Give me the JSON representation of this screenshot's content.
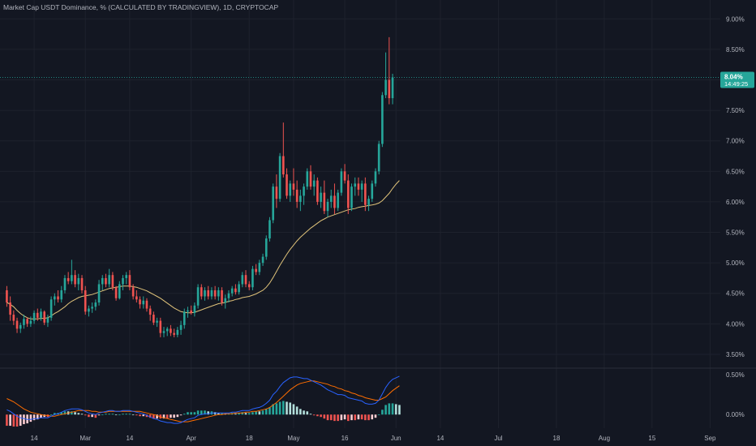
{
  "header": {
    "title": "Market Cap USDT Dominance, % (CALCULATED BY TRADINGVIEW), 1D, CRYPTOCAP"
  },
  "price_badge": {
    "value": "8.04%",
    "countdown": "14:49:25",
    "color": "#26a69a"
  },
  "colors": {
    "background": "#131722",
    "up": "#26a69a",
    "down": "#ef5350",
    "ma": "#e0c37a",
    "macd": "#2962ff",
    "signal": "#ff6d00",
    "hist_up_strong": "#26a69a",
    "hist_up_weak": "#b2dfdb",
    "hist_down_strong": "#ef5350",
    "hist_down_weak": "#ffcdd2"
  },
  "chart_data": [
    {
      "type": "candlestick",
      "y_unit": "%",
      "ylim": [
        3.3,
        9.15
      ],
      "y_ticks": [
        "9.00%",
        "8.50%",
        "8.00%",
        "7.50%",
        "7.00%",
        "6.50%",
        "6.00%",
        "5.50%",
        "5.00%",
        "4.50%",
        "4.00%",
        "3.50%"
      ],
      "y_tick_values": [
        9.0,
        8.5,
        8.0,
        7.5,
        7.0,
        6.5,
        6.0,
        5.5,
        5.0,
        4.5,
        4.0,
        3.5
      ],
      "last_value": 8.04,
      "x_ticks": [
        {
          "label": "14",
          "index": 8
        },
        {
          "label": "Mar",
          "index": 23
        },
        {
          "label": "14",
          "index": 36
        },
        {
          "label": "Apr",
          "index": 54
        },
        {
          "label": "18",
          "index": 71
        },
        {
          "label": "May",
          "index": 84
        },
        {
          "label": "16",
          "index": 99
        },
        {
          "label": "Jun",
          "index": 114
        },
        {
          "label": "14",
          "index": 127
        },
        {
          "label": "Jul",
          "index": 144
        },
        {
          "label": "18",
          "index": 161
        },
        {
          "label": "Aug",
          "index": 175
        },
        {
          "label": "15",
          "index": 189
        },
        {
          "label": "Sep",
          "index": 206
        }
      ],
      "candles": [
        [
          4.55,
          4.62,
          4.28,
          4.35
        ],
        [
          4.35,
          4.45,
          4.05,
          4.15
        ],
        [
          4.15,
          4.22,
          3.98,
          4.05
        ],
        [
          4.05,
          4.1,
          3.85,
          3.92
        ],
        [
          3.92,
          4.02,
          3.85,
          3.98
        ],
        [
          3.98,
          4.15,
          3.92,
          4.08
        ],
        [
          4.08,
          4.1,
          3.95,
          4.0
        ],
        [
          4.0,
          4.12,
          3.95,
          4.05
        ],
        [
          4.05,
          4.22,
          4.0,
          4.18
        ],
        [
          4.18,
          4.25,
          4.05,
          4.1
        ],
        [
          4.1,
          4.25,
          4.05,
          4.2
        ],
        [
          4.2,
          4.22,
          3.98,
          4.02
        ],
        [
          4.02,
          4.15,
          3.95,
          4.1
        ],
        [
          4.1,
          4.45,
          4.05,
          4.4
        ],
        [
          4.4,
          4.5,
          4.3,
          4.45
        ],
        [
          4.45,
          4.55,
          4.35,
          4.4
        ],
        [
          4.4,
          4.62,
          4.35,
          4.55
        ],
        [
          4.55,
          4.8,
          4.5,
          4.75
        ],
        [
          4.75,
          4.85,
          4.65,
          4.7
        ],
        [
          4.7,
          5.05,
          4.65,
          4.8
        ],
        [
          4.8,
          4.88,
          4.6,
          4.65
        ],
        [
          4.65,
          4.82,
          4.55,
          4.75
        ],
        [
          4.75,
          4.8,
          4.5,
          4.55
        ],
        [
          4.55,
          4.62,
          4.15,
          4.2
        ],
        [
          4.2,
          4.3,
          4.12,
          4.25
        ],
        [
          4.25,
          4.35,
          4.18,
          4.28
        ],
        [
          4.28,
          4.4,
          4.22,
          4.35
        ],
        [
          4.35,
          4.72,
          4.3,
          4.65
        ],
        [
          4.65,
          4.8,
          4.55,
          4.75
        ],
        [
          4.75,
          4.82,
          4.6,
          4.65
        ],
        [
          4.65,
          4.9,
          4.6,
          4.8
        ],
        [
          4.8,
          4.85,
          4.55,
          4.6
        ],
        [
          4.6,
          4.62,
          4.38,
          4.42
        ],
        [
          4.42,
          4.7,
          4.4,
          4.65
        ],
        [
          4.65,
          4.8,
          4.55,
          4.75
        ],
        [
          4.75,
          4.85,
          4.65,
          4.8
        ],
        [
          4.8,
          4.88,
          4.55,
          4.6
        ],
        [
          4.6,
          4.65,
          4.4,
          4.45
        ],
        [
          4.45,
          4.55,
          4.35,
          4.4
        ],
        [
          4.4,
          4.45,
          4.25,
          4.32
        ],
        [
          4.32,
          4.45,
          4.25,
          4.38
        ],
        [
          4.38,
          4.42,
          4.2,
          4.25
        ],
        [
          4.25,
          4.3,
          4.05,
          4.15
        ],
        [
          4.15,
          4.2,
          3.98,
          4.02
        ],
        [
          4.02,
          4.1,
          3.95,
          4.05
        ],
        [
          4.05,
          4.1,
          3.78,
          3.85
        ],
        [
          3.85,
          3.95,
          3.78,
          3.88
        ],
        [
          3.88,
          3.95,
          3.8,
          3.92
        ],
        [
          3.92,
          3.98,
          3.8,
          3.85
        ],
        [
          3.85,
          3.92,
          3.78,
          3.82
        ],
        [
          3.82,
          3.95,
          3.78,
          3.9
        ],
        [
          3.9,
          4.05,
          3.82,
          3.98
        ],
        [
          3.98,
          4.25,
          3.92,
          4.2
        ],
        [
          4.2,
          4.28,
          4.1,
          4.22
        ],
        [
          4.22,
          4.3,
          4.15,
          4.18
        ],
        [
          4.18,
          4.35,
          4.12,
          4.3
        ],
        [
          4.3,
          4.65,
          4.25,
          4.6
        ],
        [
          4.6,
          4.65,
          4.4,
          4.45
        ],
        [
          4.45,
          4.6,
          4.38,
          4.55
        ],
        [
          4.55,
          4.62,
          4.4,
          4.45
        ],
        [
          4.45,
          4.6,
          4.4,
          4.55
        ],
        [
          4.55,
          4.62,
          4.4,
          4.45
        ],
        [
          4.45,
          4.6,
          4.38,
          4.55
        ],
        [
          4.55,
          4.6,
          4.3,
          4.35
        ],
        [
          4.35,
          4.48,
          4.25,
          4.42
        ],
        [
          4.42,
          4.55,
          4.35,
          4.5
        ],
        [
          4.5,
          4.62,
          4.45,
          4.58
        ],
        [
          4.58,
          4.65,
          4.48,
          4.52
        ],
        [
          4.52,
          4.7,
          4.48,
          4.65
        ],
        [
          4.65,
          4.85,
          4.6,
          4.8
        ],
        [
          4.8,
          4.88,
          4.6,
          4.65
        ],
        [
          4.65,
          4.7,
          4.55,
          4.6
        ],
        [
          4.6,
          4.95,
          4.55,
          4.9
        ],
        [
          4.9,
          4.98,
          4.8,
          4.85
        ],
        [
          4.85,
          5.05,
          4.8,
          5.0
        ],
        [
          5.0,
          5.15,
          4.95,
          5.1
        ],
        [
          5.1,
          5.45,
          5.05,
          5.4
        ],
        [
          5.4,
          5.75,
          5.35,
          5.7
        ],
        [
          5.7,
          6.3,
          5.65,
          6.25
        ],
        [
          6.25,
          6.45,
          5.9,
          6.05
        ],
        [
          6.05,
          6.8,
          6.0,
          6.75
        ],
        [
          6.75,
          7.3,
          6.4,
          6.45
        ],
        [
          6.45,
          6.55,
          6.05,
          6.1
        ],
        [
          6.1,
          6.35,
          6.0,
          6.3
        ],
        [
          6.3,
          6.55,
          6.1,
          6.2
        ],
        [
          6.2,
          6.35,
          5.9,
          6.0
        ],
        [
          6.0,
          6.2,
          5.85,
          6.1
        ],
        [
          6.1,
          6.3,
          5.95,
          6.25
        ],
        [
          6.25,
          6.55,
          6.2,
          6.5
        ],
        [
          6.5,
          6.6,
          6.2,
          6.25
        ],
        [
          6.25,
          6.45,
          6.1,
          6.35
        ],
        [
          6.35,
          6.4,
          5.95,
          6.0
        ],
        [
          6.0,
          6.25,
          5.9,
          6.15
        ],
        [
          6.15,
          6.35,
          5.8,
          5.85
        ],
        [
          5.85,
          6.05,
          5.75,
          6.0
        ],
        [
          6.0,
          6.2,
          5.9,
          6.1
        ],
        [
          6.1,
          6.3,
          5.8,
          5.9
        ],
        [
          5.9,
          6.2,
          5.85,
          6.15
        ],
        [
          6.15,
          6.55,
          6.1,
          6.5
        ],
        [
          6.5,
          6.62,
          6.3,
          6.35
        ],
        [
          6.35,
          6.45,
          5.8,
          5.9
        ],
        [
          5.9,
          6.3,
          5.85,
          6.25
        ],
        [
          6.25,
          6.4,
          6.1,
          6.3
        ],
        [
          6.3,
          6.4,
          6.1,
          6.2
        ],
        [
          6.2,
          6.35,
          6.0,
          6.3
        ],
        [
          6.3,
          6.4,
          5.85,
          5.95
        ],
        [
          5.95,
          6.1,
          5.85,
          6.05
        ],
        [
          6.05,
          6.35,
          6.0,
          6.3
        ],
        [
          6.3,
          6.55,
          6.25,
          6.5
        ],
        [
          6.5,
          7.0,
          6.45,
          6.95
        ],
        [
          6.95,
          7.8,
          6.9,
          7.75
        ],
        [
          7.75,
          8.45,
          7.7,
          8.0
        ],
        [
          8.0,
          8.7,
          7.6,
          7.7
        ],
        [
          7.7,
          8.1,
          7.6,
          8.04
        ]
      ],
      "ma": [
        4.35,
        4.32,
        4.28,
        4.22,
        4.17,
        4.13,
        4.1,
        4.08,
        4.08,
        4.08,
        4.09,
        4.09,
        4.1,
        4.13,
        4.17,
        4.2,
        4.24,
        4.28,
        4.33,
        4.37,
        4.4,
        4.43,
        4.45,
        4.46,
        4.47,
        4.48,
        4.5,
        4.52,
        4.54,
        4.56,
        4.58,
        4.59,
        4.6,
        4.61,
        4.62,
        4.62,
        4.62,
        4.61,
        4.6,
        4.58,
        4.56,
        4.54,
        4.51,
        4.48,
        4.45,
        4.42,
        4.38,
        4.34,
        4.3,
        4.26,
        4.23,
        4.2,
        4.19,
        4.18,
        4.18,
        4.19,
        4.21,
        4.23,
        4.25,
        4.27,
        4.29,
        4.31,
        4.33,
        4.34,
        4.35,
        4.37,
        4.38,
        4.4,
        4.41,
        4.43,
        4.44,
        4.45,
        4.47,
        4.49,
        4.52,
        4.55,
        4.6,
        4.67,
        4.76,
        4.86,
        4.96,
        5.05,
        5.14,
        5.22,
        5.29,
        5.36,
        5.42,
        5.47,
        5.52,
        5.57,
        5.61,
        5.65,
        5.69,
        5.72,
        5.75,
        5.77,
        5.79,
        5.81,
        5.83,
        5.85,
        5.87,
        5.88,
        5.89,
        5.91,
        5.92,
        5.93,
        5.94,
        5.95,
        5.96,
        5.98,
        6.02,
        6.08,
        6.14,
        6.22,
        6.29,
        6.35
      ],
      "x_range": [
        -2,
        209
      ]
    },
    {
      "type": "macd",
      "ylim": [
        -0.17,
        0.55
      ],
      "y_ticks": [
        "0.50%",
        "0.00%"
      ],
      "y_tick_values": [
        0.5,
        0.0
      ],
      "macd": [
        0.06,
        0.04,
        0.01,
        -0.02,
        -0.04,
        -0.05,
        -0.06,
        -0.06,
        -0.05,
        -0.05,
        -0.04,
        -0.04,
        -0.04,
        -0.02,
        0.0,
        0.01,
        0.03,
        0.05,
        0.06,
        0.07,
        0.07,
        0.07,
        0.06,
        0.04,
        0.02,
        0.01,
        0.0,
        0.02,
        0.03,
        0.04,
        0.05,
        0.05,
        0.04,
        0.04,
        0.05,
        0.05,
        0.05,
        0.04,
        0.03,
        0.02,
        0.01,
        -0.01,
        -0.03,
        -0.05,
        -0.06,
        -0.08,
        -0.09,
        -0.1,
        -0.1,
        -0.11,
        -0.11,
        -0.1,
        -0.08,
        -0.06,
        -0.05,
        -0.04,
        -0.01,
        0.0,
        0.01,
        0.01,
        0.02,
        0.02,
        0.02,
        0.02,
        0.02,
        0.02,
        0.03,
        0.03,
        0.04,
        0.05,
        0.05,
        0.05,
        0.07,
        0.08,
        0.09,
        0.11,
        0.14,
        0.18,
        0.25,
        0.29,
        0.35,
        0.4,
        0.43,
        0.46,
        0.47,
        0.47,
        0.46,
        0.45,
        0.45,
        0.43,
        0.41,
        0.39,
        0.37,
        0.34,
        0.31,
        0.29,
        0.27,
        0.25,
        0.25,
        0.24,
        0.21,
        0.2,
        0.19,
        0.18,
        0.17,
        0.14,
        0.13,
        0.13,
        0.14,
        0.18,
        0.26,
        0.34,
        0.4,
        0.44,
        0.46,
        0.48
      ],
      "signal": [
        0.2,
        0.18,
        0.16,
        0.13,
        0.1,
        0.07,
        0.05,
        0.03,
        0.02,
        0.01,
        0.0,
        -0.01,
        -0.01,
        -0.02,
        -0.02,
        -0.01,
        0.0,
        0.01,
        0.02,
        0.03,
        0.04,
        0.05,
        0.05,
        0.05,
        0.05,
        0.04,
        0.04,
        0.03,
        0.03,
        0.03,
        0.04,
        0.04,
        0.04,
        0.04,
        0.04,
        0.04,
        0.04,
        0.04,
        0.04,
        0.04,
        0.03,
        0.02,
        0.01,
        0.0,
        -0.01,
        -0.03,
        -0.04,
        -0.05,
        -0.06,
        -0.07,
        -0.08,
        -0.09,
        -0.09,
        -0.09,
        -0.08,
        -0.07,
        -0.06,
        -0.05,
        -0.04,
        -0.03,
        -0.02,
        -0.01,
        0.0,
        0.0,
        0.01,
        0.01,
        0.01,
        0.02,
        0.02,
        0.02,
        0.03,
        0.03,
        0.04,
        0.04,
        0.05,
        0.06,
        0.07,
        0.09,
        0.12,
        0.15,
        0.19,
        0.23,
        0.27,
        0.31,
        0.34,
        0.37,
        0.39,
        0.4,
        0.41,
        0.42,
        0.42,
        0.41,
        0.4,
        0.39,
        0.38,
        0.36,
        0.35,
        0.33,
        0.32,
        0.3,
        0.29,
        0.27,
        0.26,
        0.24,
        0.23,
        0.21,
        0.2,
        0.19,
        0.18,
        0.18,
        0.2,
        0.22,
        0.26,
        0.3,
        0.33,
        0.36
      ]
    }
  ]
}
